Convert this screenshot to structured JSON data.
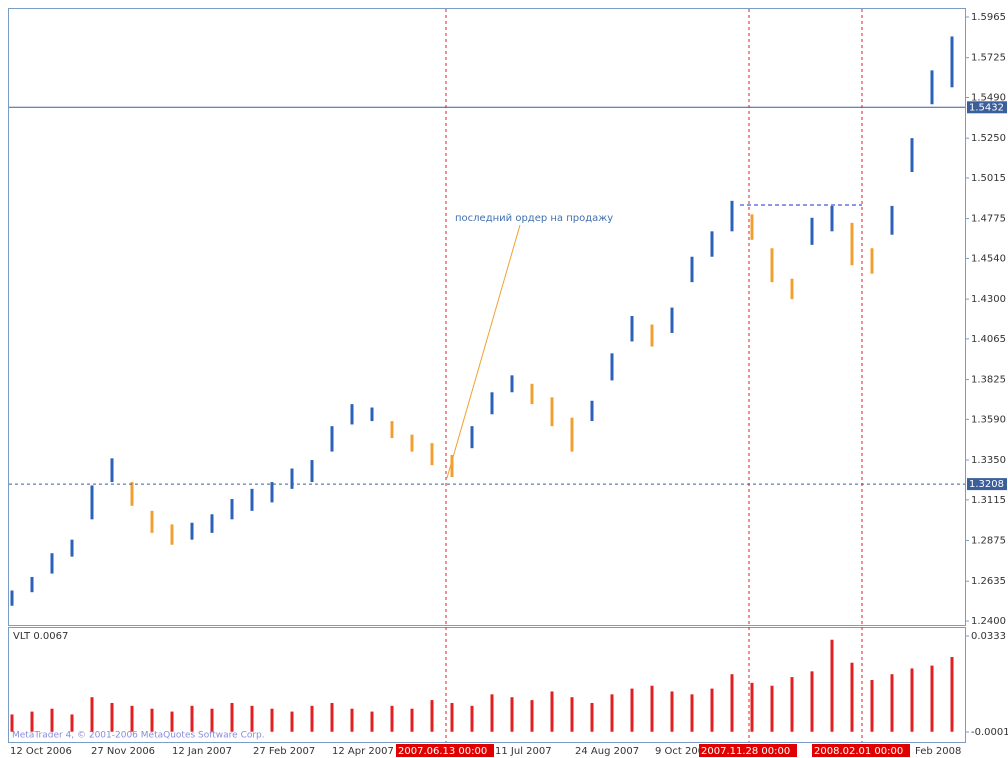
{
  "chart_data": [
    {
      "type": "ohlc",
      "low": [
        1.249,
        1.257,
        1.268,
        1.278,
        1.3,
        1.322,
        1.308,
        1.292,
        1.285,
        1.288,
        1.292,
        1.3,
        1.305,
        1.31,
        1.318,
        1.322,
        1.34,
        1.356,
        1.358,
        1.348,
        1.34,
        1.332,
        1.325,
        1.342,
        1.362,
        1.375,
        1.368,
        1.355,
        1.34,
        1.358,
        1.382,
        1.405,
        1.402,
        1.41,
        1.44,
        1.455,
        1.47,
        1.465,
        1.44,
        1.43,
        1.462,
        1.47,
        1.45,
        1.445,
        1.468,
        1.505,
        1.545,
        1.555
      ],
      "high": [
        1.258,
        1.266,
        1.28,
        1.288,
        1.32,
        1.336,
        1.322,
        1.305,
        1.297,
        1.298,
        1.303,
        1.312,
        1.318,
        1.322,
        1.33,
        1.335,
        1.355,
        1.368,
        1.366,
        1.358,
        1.35,
        1.345,
        1.338,
        1.355,
        1.375,
        1.385,
        1.38,
        1.372,
        1.36,
        1.37,
        1.398,
        1.42,
        1.415,
        1.425,
        1.455,
        1.47,
        1.488,
        1.48,
        1.46,
        1.442,
        1.478,
        1.485,
        1.475,
        1.46,
        1.485,
        1.525,
        1.565,
        1.585
      ],
      "up_color": "#2b62b8",
      "down_color": "#f0a030",
      "ylim": [
        1.24,
        1.5965
      ],
      "yticks": [
        1.5965,
        1.5725,
        {
          "value": 1.549,
          "label": "1.5490"
        },
        {
          "value": 1.525,
          "label": "1.5250"
        },
        1.5015,
        1.4775,
        {
          "value": 1.454,
          "label": "1.4540"
        },
        {
          "value": 1.43,
          "label": "1.4300"
        },
        1.4065,
        1.3825,
        {
          "value": 1.359,
          "label": "1.3590"
        },
        {
          "value": 1.335,
          "label": "1.3350"
        },
        1.3115,
        1.2875,
        1.2635,
        {
          "value": 1.24,
          "label": "1.2400"
        }
      ],
      "hlines": [
        1.5432,
        1.3208
      ],
      "annotation": "последний ордер на продажу",
      "xlabels": [
        "12 Oct 2006",
        "27 Nov 2006",
        "12 Jan 2007",
        "27 Feb 2007",
        "12 Apr 2007",
        "11 Jul 2007",
        "24 Aug 2007",
        "9 Oct 2007",
        "Feb 2008"
      ],
      "vlines": [
        "2007.06.13 00:00",
        "2007.11.28 00:00",
        "2008.02.01 00:00"
      ]
    },
    {
      "type": "bar",
      "title": "VLT 0.0067",
      "color": "#e02020",
      "values": [
        0.006,
        0.007,
        0.008,
        0.006,
        0.012,
        0.01,
        0.009,
        0.008,
        0.007,
        0.009,
        0.008,
        0.01,
        0.009,
        0.008,
        0.007,
        0.009,
        0.01,
        0.008,
        0.007,
        0.009,
        0.008,
        0.011,
        0.01,
        0.009,
        0.013,
        0.012,
        0.011,
        0.014,
        0.012,
        0.01,
        0.013,
        0.015,
        0.016,
        0.014,
        0.013,
        0.015,
        0.02,
        0.017,
        0.016,
        0.019,
        0.021,
        0.032,
        0.024,
        0.018,
        0.02,
        0.022,
        0.023,
        0.026
      ],
      "ylim": [
        -0.0001,
        0.0333
      ],
      "yticks": [
        0.0333,
        -0.0001
      ]
    }
  ],
  "watermark": "MetaTrader 4, © 2001-2006 MetaQuotes Software Corp."
}
